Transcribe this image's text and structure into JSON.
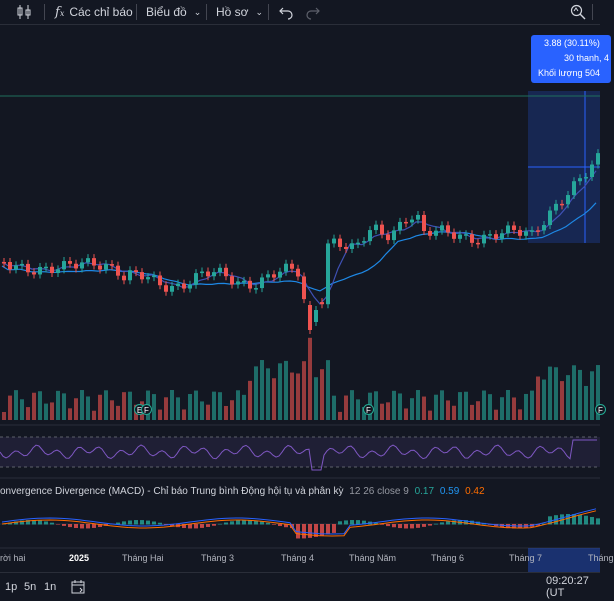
{
  "toolbar": {
    "indicators_label": "Các chỉ báo",
    "chart_type_label": "Biểu đồ",
    "profile_label": "Hồ sơ"
  },
  "tooltip": {
    "line1": "3.88 (30.11%)",
    "line2": "30 thanh, 4",
    "line3": "Khối lượng 504"
  },
  "macd": {
    "name": "onvergence Divergence (MACD) - Chỉ báo Trung bình Động hội tụ và phân kỳ",
    "params": "12 26 close 9",
    "v1": "0.17",
    "v2": "0.59",
    "v3": "0.42"
  },
  "time_axis": [
    "rời hai",
    "2025",
    "Tháng Hai",
    "Tháng 3",
    "Tháng 4",
    "Tháng Năm",
    "Tháng 6",
    "Tháng 7",
    "Tháng"
  ],
  "badges": [
    "E",
    "F",
    "F",
    "F"
  ],
  "bottom": {
    "intervals": [
      "1p",
      "5n",
      "1n"
    ],
    "clock": "09:20:27 (UT"
  },
  "colors": {
    "background": "#131722",
    "up": "#26a69a",
    "down": "#ef5350",
    "accent": "#2962ff",
    "rsi": "#7e57c2",
    "macd_line": "#2962ff",
    "signal_line": "#ff6d00"
  },
  "icons": [
    "candles-icon",
    "fx-icon",
    "undo-icon",
    "redo-icon",
    "zoom-icon",
    "calendar-icon"
  ]
}
